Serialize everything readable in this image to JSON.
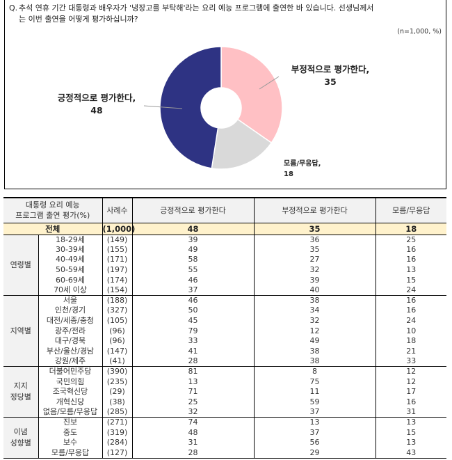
{
  "question": {
    "prefix": "Q.",
    "line1": "추석 연휴 기간 대통령과 배우자가 '냉장고를 부탁해'라는 요리 예능 프로그램에 출연한 바 있습니다. 선생님께서",
    "line2": "는 이번 출연을 어떻게 평가하십니까?",
    "sample_note": "(n=1,000, %)"
  },
  "chart_data": {
    "type": "pie",
    "variant": "donut",
    "title": "추석 연휴 기간 대통령과 배우자가 '냉장고를 부탁해'라는 요리 예능 프로그램에 출연한 바 있습니다. 선생님께서는 이번 출연을 어떻게 평가하십니까?",
    "unit_note": "(n=1,000, %)",
    "categories": [
      "부정적으로 평가한다",
      "모름/무응답",
      "긍정적으로 평가한다"
    ],
    "values": [
      35,
      18,
      48
    ],
    "colors": [
      "#ffc0c4",
      "#d9d9d9",
      "#2e3383"
    ],
    "labels": [
      {
        "name": "부정적으로 평가한다,",
        "value": "35"
      },
      {
        "name": "모름/무응답,",
        "value": "18"
      },
      {
        "name": "긍정적으로 평가한다,",
        "value": "48"
      }
    ],
    "legend": "none (direct labels with leader lines)"
  },
  "table": {
    "header": {
      "group_label_line1": "대통령 요리 예능",
      "group_label_line2": "프로그램 출연 평가(%)",
      "n": "사례수",
      "positive": "긍정적으로 평가한다",
      "negative": "부정적으로 평가한다",
      "unknown": "모름/무응답"
    },
    "total": {
      "label": "전체",
      "n": "(1,000)",
      "positive": "48",
      "negative": "35",
      "unknown": "18"
    },
    "groups": [
      {
        "name_line1": "연령별",
        "name_line2": "",
        "rows": [
          {
            "label": "18-29세",
            "n": "(149)",
            "positive": "39",
            "negative": "36",
            "unknown": "25"
          },
          {
            "label": "30-39세",
            "n": "(155)",
            "positive": "49",
            "negative": "35",
            "unknown": "16"
          },
          {
            "label": "40-49세",
            "n": "(171)",
            "positive": "58",
            "negative": "27",
            "unknown": "16"
          },
          {
            "label": "50-59세",
            "n": "(197)",
            "positive": "55",
            "negative": "32",
            "unknown": "13"
          },
          {
            "label": "60-69세",
            "n": "(174)",
            "positive": "46",
            "negative": "39",
            "unknown": "15"
          },
          {
            "label": "70세 이상",
            "n": "(154)",
            "positive": "37",
            "negative": "40",
            "unknown": "24"
          }
        ]
      },
      {
        "name_line1": "지역별",
        "name_line2": "",
        "rows": [
          {
            "label": "서울",
            "n": "(188)",
            "positive": "46",
            "negative": "38",
            "unknown": "16"
          },
          {
            "label": "인천/경기",
            "n": "(327)",
            "positive": "50",
            "negative": "34",
            "unknown": "16"
          },
          {
            "label": "대전/세종/충청",
            "n": "(105)",
            "positive": "45",
            "negative": "32",
            "unknown": "24"
          },
          {
            "label": "광주/전라",
            "n": "(96)",
            "positive": "79",
            "negative": "12",
            "unknown": "10"
          },
          {
            "label": "대구/경북",
            "n": "(96)",
            "positive": "33",
            "negative": "49",
            "unknown": "18"
          },
          {
            "label": "부산/울산/경남",
            "n": "(147)",
            "positive": "41",
            "negative": "38",
            "unknown": "21"
          },
          {
            "label": "강원/제주",
            "n": "(41)",
            "positive": "28",
            "negative": "38",
            "unknown": "33"
          }
        ]
      },
      {
        "name_line1": "지지",
        "name_line2": "정당별",
        "rows": [
          {
            "label": "더불어민주당",
            "n": "(390)",
            "positive": "81",
            "negative": "8",
            "unknown": "12"
          },
          {
            "label": "국민의힘",
            "n": "(235)",
            "positive": "13",
            "negative": "75",
            "unknown": "12"
          },
          {
            "label": "조국혁신당",
            "n": "(29)",
            "positive": "71",
            "negative": "11",
            "unknown": "17"
          },
          {
            "label": "개혁신당",
            "n": "(38)",
            "positive": "25",
            "negative": "59",
            "unknown": "16"
          },
          {
            "label": "없음/모름/무응답",
            "n": "(285)",
            "positive": "32",
            "negative": "37",
            "unknown": "31"
          }
        ]
      },
      {
        "name_line1": "이념",
        "name_line2": "성향별",
        "rows": [
          {
            "label": "진보",
            "n": "(271)",
            "positive": "74",
            "negative": "13",
            "unknown": "13"
          },
          {
            "label": "중도",
            "n": "(319)",
            "positive": "48",
            "negative": "37",
            "unknown": "15"
          },
          {
            "label": "보수",
            "n": "(284)",
            "positive": "31",
            "negative": "56",
            "unknown": "13"
          },
          {
            "label": "모름/무응답",
            "n": "(127)",
            "positive": "28",
            "negative": "29",
            "unknown": "43"
          }
        ]
      }
    ]
  }
}
